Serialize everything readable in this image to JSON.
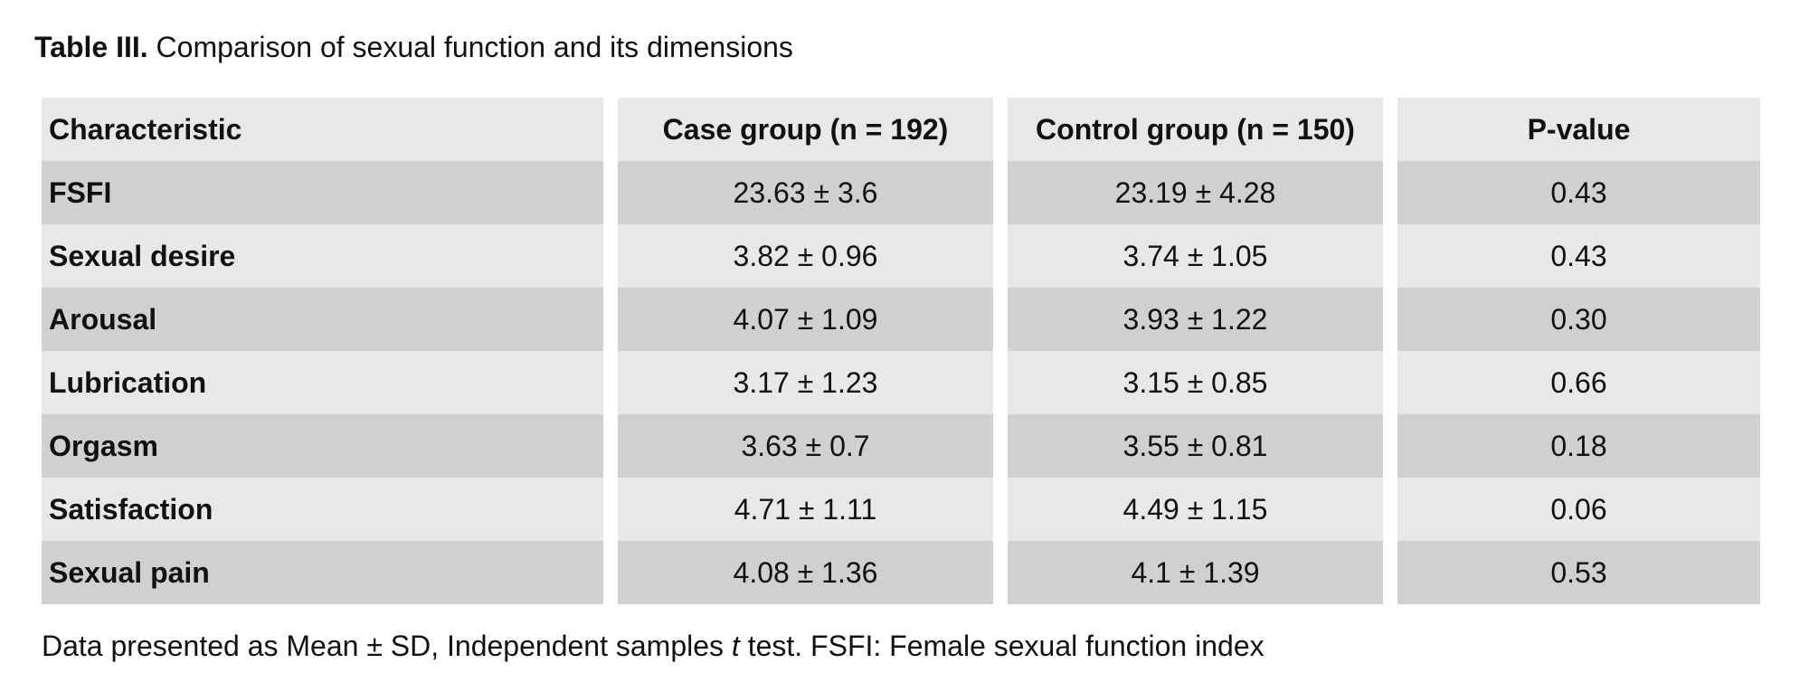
{
  "caption": {
    "label": "Table III.",
    "text": "Comparison of sexual function and its dimensions"
  },
  "table": {
    "headers": [
      "Characteristic",
      "Case group (n = 192)",
      "Control group (n = 150)",
      "P-value"
    ],
    "rows": [
      [
        "FSFI",
        "23.63 ± 3.6",
        "23.19 ± 4.28",
        "0.43"
      ],
      [
        "Sexual desire",
        "3.82 ± 0.96",
        "3.74 ± 1.05",
        "0.43"
      ],
      [
        "Arousal",
        "4.07 ± 1.09",
        "3.93 ± 1.22",
        "0.30"
      ],
      [
        "Lubrication",
        "3.17 ± 1.23",
        "3.15 ± 0.85",
        "0.66"
      ],
      [
        "Orgasm",
        "3.63 ± 0.7",
        "3.55 ± 0.81",
        "0.18"
      ],
      [
        "Satisfaction",
        "4.71 ± 1.11",
        "4.49 ± 1.15",
        "0.06"
      ],
      [
        "Sexual pain",
        "4.08 ± 1.36",
        "4.1 ± 1.39",
        "0.53"
      ]
    ]
  },
  "footnote": {
    "before": "Data presented as Mean ± SD, Independent samples ",
    "italic": "t",
    "after": " test. FSFI: Female sexual function index"
  },
  "colors": {
    "header_bg": "#e8e8e8",
    "row_dark": "#d0d0d0",
    "row_light": "#e8e8e8",
    "text": "#111111"
  }
}
